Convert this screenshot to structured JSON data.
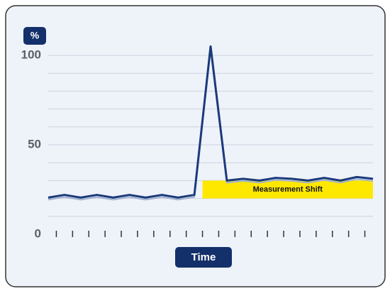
{
  "chart_data": {
    "type": "line",
    "y_badge": "%",
    "x_badge": "Time",
    "x": [
      0,
      1,
      2,
      3,
      4,
      5,
      6,
      7,
      8,
      9,
      10,
      11,
      12,
      13,
      14,
      15,
      16,
      17,
      18,
      19,
      20
    ],
    "series": [
      {
        "color": "#1a3a7a",
        "values": [
          20.5,
          22,
          20.5,
          22,
          20.5,
          22,
          20.5,
          22,
          20.5,
          22,
          105,
          30,
          31,
          30,
          31.5,
          31,
          30,
          31.5,
          30,
          32,
          31
        ]
      }
    ],
    "xlim": [
      0,
      20
    ],
    "xticks": [
      0.5,
      1.5,
      2.5,
      3.5,
      4.5,
      5.5,
      6.5,
      7.5,
      8.5,
      9.5,
      10.5,
      11.5,
      12.5,
      13.5,
      14.5,
      15.5,
      16.5,
      17.5,
      18.5,
      19.5
    ],
    "ylim": [
      0,
      110
    ],
    "yticks": [
      0,
      50,
      100
    ],
    "minor_yticks": [
      10,
      20,
      30,
      40,
      60,
      70,
      80,
      90
    ],
    "grid": true,
    "band": {
      "label": "Measurement Shift",
      "x": [
        9.5,
        20
      ],
      "y": [
        20,
        30
      ],
      "color": "#ffe800"
    }
  }
}
